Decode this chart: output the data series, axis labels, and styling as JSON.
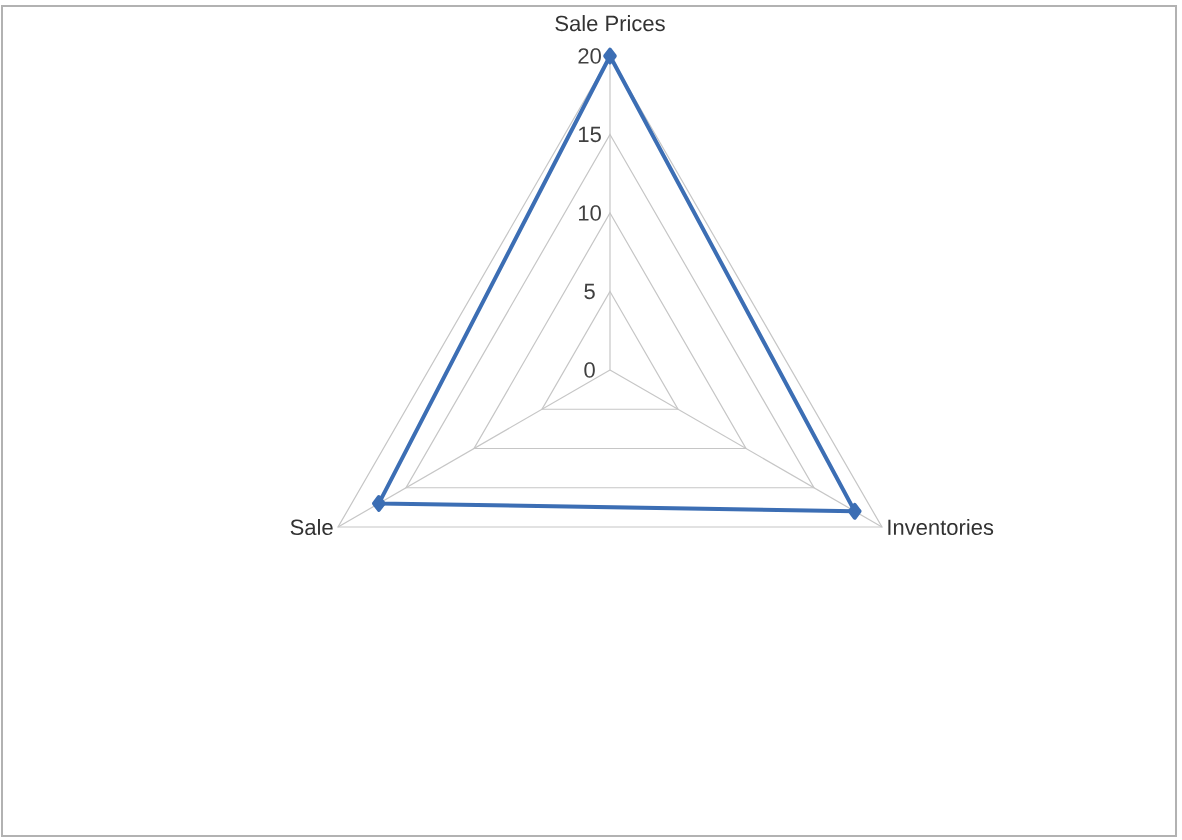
{
  "chart_data": {
    "type": "radar",
    "categories": [
      "Sale Prices",
      "Inventories",
      "Sale"
    ],
    "series": [
      {
        "color": "#3c6eb4",
        "values": [
          20,
          18,
          17
        ]
      }
    ],
    "ylim": [
      0,
      20
    ],
    "yticks": [
      0,
      5,
      10,
      15,
      20
    ],
    "marker": "diamond"
  }
}
